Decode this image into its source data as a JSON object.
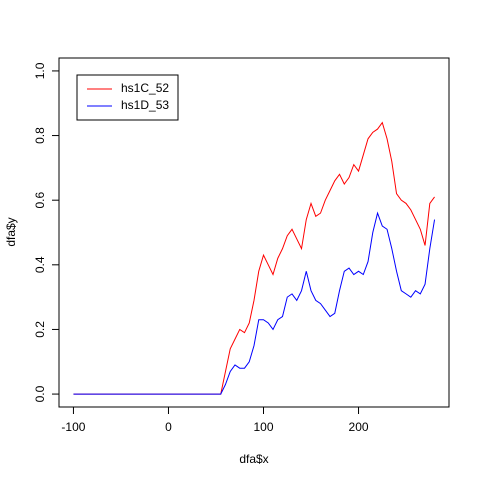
{
  "chart_data": {
    "type": "line",
    "x_label": "dfa$x",
    "y_label": "dfa$y",
    "x": [
      -100,
      55,
      60,
      65,
      70,
      75,
      80,
      85,
      90,
      95,
      100,
      105,
      110,
      115,
      120,
      125,
      130,
      135,
      140,
      145,
      150,
      155,
      160,
      165,
      170,
      175,
      180,
      185,
      190,
      195,
      200,
      205,
      210,
      215,
      220,
      225,
      230,
      235,
      240,
      245,
      250,
      255,
      260,
      265,
      270,
      275,
      280
    ],
    "series": [
      {
        "name": "hs1C_52",
        "color": "#ff0000",
        "values": [
          0,
          0,
          0.07,
          0.14,
          0.17,
          0.2,
          0.19,
          0.22,
          0.29,
          0.38,
          0.43,
          0.4,
          0.37,
          0.42,
          0.45,
          0.49,
          0.51,
          0.48,
          0.45,
          0.54,
          0.59,
          0.55,
          0.56,
          0.6,
          0.63,
          0.66,
          0.68,
          0.65,
          0.67,
          0.71,
          0.69,
          0.74,
          0.79,
          0.81,
          0.82,
          0.84,
          0.79,
          0.72,
          0.62,
          0.6,
          0.59,
          0.57,
          0.54,
          0.51,
          0.46,
          0.59,
          0.61
        ]
      },
      {
        "name": "hs1D_53",
        "color": "#0000ff",
        "values": [
          0,
          0,
          0.03,
          0.07,
          0.09,
          0.08,
          0.08,
          0.1,
          0.15,
          0.23,
          0.23,
          0.22,
          0.2,
          0.23,
          0.24,
          0.3,
          0.31,
          0.29,
          0.32,
          0.38,
          0.32,
          0.29,
          0.28,
          0.26,
          0.24,
          0.25,
          0.32,
          0.38,
          0.39,
          0.37,
          0.38,
          0.37,
          0.41,
          0.5,
          0.56,
          0.52,
          0.51,
          0.45,
          0.38,
          0.32,
          0.31,
          0.3,
          0.32,
          0.31,
          0.34,
          0.45,
          0.54
        ]
      }
    ],
    "xlim": [
      -115.2,
      295.2
    ],
    "ylim": [
      -0.04,
      1.04
    ],
    "xticks": [
      -100,
      0,
      100,
      200
    ],
    "yticks": [
      {
        "value": 0,
        "label": "0.0"
      },
      0.2,
      0.4,
      0.6,
      0.8,
      {
        "value": 1,
        "label": "1.0"
      }
    ],
    "legend": "topleft"
  }
}
